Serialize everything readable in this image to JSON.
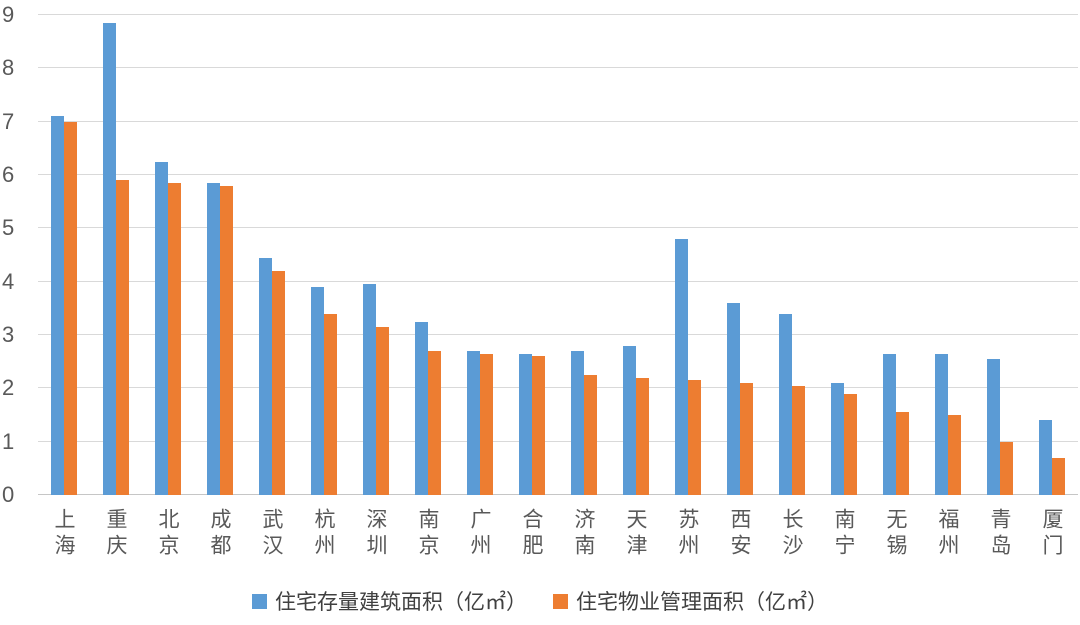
{
  "chart_data": {
    "type": "bar",
    "title": "",
    "categories": [
      "上海",
      "重庆",
      "北京",
      "成都",
      "武汉",
      "杭州",
      "深圳",
      "南京",
      "广州",
      "合肥",
      "济南",
      "天津",
      "苏州",
      "西安",
      "长沙",
      "南宁",
      "无锡",
      "福州",
      "青岛",
      "厦门"
    ],
    "series": [
      {
        "name": "住宅存量建筑面积（亿㎡）",
        "color": "#5B9BD5",
        "values": [
          7.1,
          8.85,
          6.25,
          5.85,
          4.45,
          3.9,
          3.95,
          3.25,
          2.7,
          2.65,
          2.7,
          2.8,
          4.8,
          3.6,
          3.4,
          2.1,
          2.65,
          2.65,
          2.55,
          1.4
        ]
      },
      {
        "name": "住宅物业管理面积（亿㎡）",
        "color": "#ED7D31",
        "values": [
          7.0,
          5.9,
          5.85,
          5.8,
          4.2,
          3.4,
          3.15,
          2.7,
          2.65,
          2.6,
          2.25,
          2.2,
          2.15,
          2.1,
          2.05,
          1.9,
          1.55,
          1.5,
          1.0,
          0.7
        ]
      }
    ],
    "xlabel": "",
    "ylabel": "",
    "ylim": [
      0,
      9
    ],
    "yticks": [
      0,
      1,
      2,
      3,
      4,
      5,
      6,
      7,
      8,
      9
    ],
    "grid": true,
    "legend_position": "bottom",
    "gridline_color": "#D9D9D9",
    "axis_text_color": "#595959"
  }
}
